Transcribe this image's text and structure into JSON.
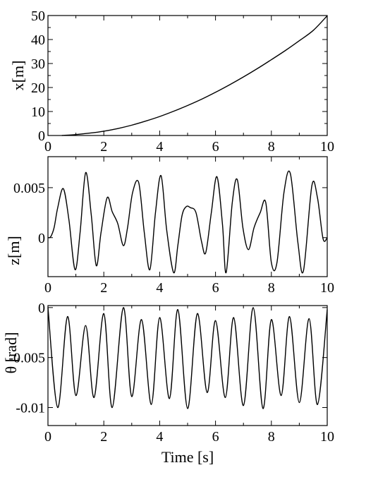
{
  "chart_data": [
    {
      "type": "line",
      "ylabel": "x[m]",
      "xlabel": "",
      "xlim": [
        0,
        10
      ],
      "ylim": [
        0,
        50
      ],
      "x_ticks": [
        0,
        2,
        4,
        6,
        8,
        10
      ],
      "x_tick_labels": [
        "0",
        "2",
        "4",
        "6",
        "8",
        "10"
      ],
      "y_ticks": [
        0,
        10,
        20,
        30,
        40,
        50
      ],
      "y_tick_labels": [
        "0",
        "10",
        "20",
        "30",
        "40",
        "50"
      ],
      "series": [
        {
          "x": [
            0.5,
            1.0,
            1.5,
            2.0,
            2.5,
            3.0,
            3.5,
            4.0,
            4.5,
            5.0,
            5.5,
            6.0,
            6.5,
            7.0,
            7.5,
            8.0,
            8.5,
            9.0,
            9.5,
            10.0
          ],
          "y": [
            0.0,
            0.4,
            1.0,
            1.8,
            2.9,
            4.3,
            6.0,
            7.9,
            10.1,
            12.5,
            15.1,
            18.0,
            21.1,
            24.4,
            27.9,
            31.6,
            35.4,
            39.5,
            43.8,
            49.9
          ]
        }
      ]
    },
    {
      "type": "line",
      "ylabel": "z[m]",
      "xlabel": "",
      "xlim": [
        0,
        10
      ],
      "ylim": [
        -0.0039,
        0.0081
      ],
      "x_ticks": [
        0,
        2,
        4,
        6,
        8,
        10
      ],
      "x_tick_labels": [
        "0",
        "2",
        "4",
        "6",
        "8",
        "10"
      ],
      "y_ticks": [
        0,
        0.005
      ],
      "y_tick_labels": [
        "0",
        "0.005"
      ],
      "series": [
        {
          "x": [
            0.0,
            0.1,
            0.22,
            0.35,
            0.55,
            0.75,
            0.97,
            1.15,
            1.35,
            1.55,
            1.73,
            1.9,
            2.12,
            2.3,
            2.5,
            2.7,
            2.85,
            3.03,
            3.25,
            3.45,
            3.65,
            3.85,
            4.05,
            4.25,
            4.5,
            4.65,
            4.8,
            4.95,
            5.1,
            5.3,
            5.5,
            5.65,
            5.85,
            6.05,
            6.25,
            6.38,
            6.6,
            6.78,
            6.98,
            7.18,
            7.38,
            7.6,
            7.8,
            8.0,
            8.2,
            8.45,
            8.68,
            8.95,
            9.15,
            9.45,
            9.65,
            9.85,
            10.0
          ],
          "y": [
            0.0,
            0.0001,
            0.001,
            0.003,
            0.0049,
            0.0018,
            -0.0032,
            0.0005,
            0.0065,
            0.0023,
            -0.0028,
            0.0005,
            0.004,
            0.0026,
            0.0014,
            -0.0008,
            0.001,
            0.0045,
            0.0055,
            0.0005,
            -0.0032,
            0.0025,
            0.0062,
            0.0008,
            -0.0035,
            -0.0008,
            0.0022,
            0.0031,
            0.003,
            0.0025,
            -0.0004,
            -0.0015,
            0.0025,
            0.0061,
            0.0013,
            -0.0035,
            0.0035,
            0.0058,
            0.001,
            -0.0012,
            0.001,
            0.0025,
            0.0035,
            -0.0025,
            -0.0025,
            0.0045,
            0.0064,
            -0.0005,
            -0.0033,
            0.0052,
            0.004,
            -0.0001,
            0.0
          ]
        }
      ]
    },
    {
      "type": "line",
      "ylabel": "θ [rad]",
      "xlabel": "Time [s]",
      "xlim": [
        0,
        10
      ],
      "ylim": [
        -0.0118,
        0.0002
      ],
      "x_ticks": [
        0,
        2,
        4,
        6,
        8,
        10
      ],
      "x_tick_labels": [
        "0",
        "2",
        "4",
        "6",
        "8",
        "10"
      ],
      "y_ticks": [
        0,
        -0.005,
        -0.01
      ],
      "y_tick_labels": [
        "0",
        "-0.005",
        "-0.01"
      ],
      "series": [
        {
          "x": [
            0.0,
            0.35,
            0.7,
            1.0,
            1.35,
            1.65,
            2.0,
            2.3,
            2.7,
            3.0,
            3.35,
            3.7,
            4.0,
            4.35,
            4.65,
            5.0,
            5.35,
            5.7,
            6.0,
            6.35,
            6.65,
            7.0,
            7.35,
            7.7,
            8.0,
            8.35,
            8.65,
            9.0,
            9.35,
            9.65,
            10.0
          ],
          "y": [
            0.0,
            -0.01,
            -0.0009,
            -0.0088,
            -0.0018,
            -0.009,
            -0.0006,
            -0.01,
            0.0,
            -0.0089,
            -0.0012,
            -0.0097,
            -0.001,
            -0.0091,
            -0.0002,
            -0.0101,
            -0.0006,
            -0.0085,
            -0.0013,
            -0.009,
            -0.001,
            -0.0098,
            0.0,
            -0.0101,
            -0.0012,
            -0.0088,
            -0.0009,
            -0.0095,
            -0.0011,
            -0.0097,
            -0.0002
          ]
        }
      ]
    }
  ]
}
